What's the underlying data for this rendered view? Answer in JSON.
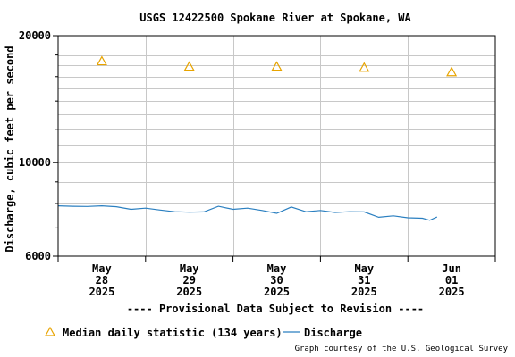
{
  "chart_data": {
    "type": "line",
    "title": "USGS 12422500 Spokane River at Spokane, WA",
    "ylabel": "Discharge, cubic feet per second",
    "xlabel": "",
    "y_scale": "log",
    "ylim": [
      6000,
      20000
    ],
    "y_ticks": [
      "20000",
      "10000",
      "6000"
    ],
    "grid": true,
    "x_ticks": [
      {
        "date": "2025-05-28",
        "month": "May",
        "day": "28",
        "year": "2025"
      },
      {
        "date": "2025-05-29",
        "month": "May",
        "day": "29",
        "year": "2025"
      },
      {
        "date": "2025-05-30",
        "month": "May",
        "day": "30",
        "year": "2025"
      },
      {
        "date": "2025-05-31",
        "month": "May",
        "day": "31",
        "year": "2025"
      },
      {
        "date": "2025-06-01",
        "month": "Jun",
        "day": "01",
        "year": "2025"
      }
    ],
    "xlim": [
      "2025-05-27T12:00",
      "2025-06-01T12:00"
    ],
    "series": [
      {
        "name": "Median daily statistic (134 years)",
        "type": "scatter",
        "marker": "triangle",
        "color": "#e8a400",
        "points": [
          {
            "x": "2025-05-28T00:00",
            "y": 17400
          },
          {
            "x": "2025-05-29T00:00",
            "y": 16900
          },
          {
            "x": "2025-05-30T00:00",
            "y": 16900
          },
          {
            "x": "2025-05-31T00:00",
            "y": 16800
          },
          {
            "x": "2025-06-01T00:00",
            "y": 16400
          }
        ]
      },
      {
        "name": "Discharge",
        "type": "line",
        "color": "#2a7fc0",
        "points": [
          {
            "x": "2025-05-27T12:00",
            "y": 7900
          },
          {
            "x": "2025-05-27T16:00",
            "y": 7880
          },
          {
            "x": "2025-05-27T20:00",
            "y": 7870
          },
          {
            "x": "2025-05-28T00:00",
            "y": 7900
          },
          {
            "x": "2025-05-28T04:00",
            "y": 7860
          },
          {
            "x": "2025-05-28T08:00",
            "y": 7750
          },
          {
            "x": "2025-05-28T12:00",
            "y": 7800
          },
          {
            "x": "2025-05-28T16:00",
            "y": 7720
          },
          {
            "x": "2025-05-28T20:00",
            "y": 7650
          },
          {
            "x": "2025-05-29T00:00",
            "y": 7630
          },
          {
            "x": "2025-05-29T04:00",
            "y": 7640
          },
          {
            "x": "2025-05-29T08:00",
            "y": 7880
          },
          {
            "x": "2025-05-29T12:00",
            "y": 7750
          },
          {
            "x": "2025-05-29T16:00",
            "y": 7800
          },
          {
            "x": "2025-05-29T20:00",
            "y": 7700
          },
          {
            "x": "2025-05-30T00:00",
            "y": 7580
          },
          {
            "x": "2025-05-30T04:00",
            "y": 7850
          },
          {
            "x": "2025-05-30T08:00",
            "y": 7650
          },
          {
            "x": "2025-05-30T12:00",
            "y": 7700
          },
          {
            "x": "2025-05-30T16:00",
            "y": 7620
          },
          {
            "x": "2025-05-30T20:00",
            "y": 7650
          },
          {
            "x": "2025-05-31T00:00",
            "y": 7640
          },
          {
            "x": "2025-05-31T04:00",
            "y": 7420
          },
          {
            "x": "2025-05-31T08:00",
            "y": 7480
          },
          {
            "x": "2025-05-31T12:00",
            "y": 7400
          },
          {
            "x": "2025-05-31T16:00",
            "y": 7380
          },
          {
            "x": "2025-05-31T18:00",
            "y": 7300
          },
          {
            "x": "2025-05-31T20:00",
            "y": 7430
          }
        ]
      }
    ],
    "legend": {
      "position": "bottom",
      "items": [
        {
          "label": "Median daily statistic (134 years)",
          "marker": "triangle"
        },
        {
          "label": "Discharge",
          "marker": "line"
        }
      ]
    },
    "annotation": "---- Provisional Data Subject to Revision ----",
    "credit": "Graph courtesy of the U.S. Geological Survey"
  },
  "colors": {
    "grid": "#c8c8c8",
    "axis": "#000000",
    "annotation": "#dd0000",
    "median": "#e8a400",
    "discharge": "#2a7fc0"
  }
}
